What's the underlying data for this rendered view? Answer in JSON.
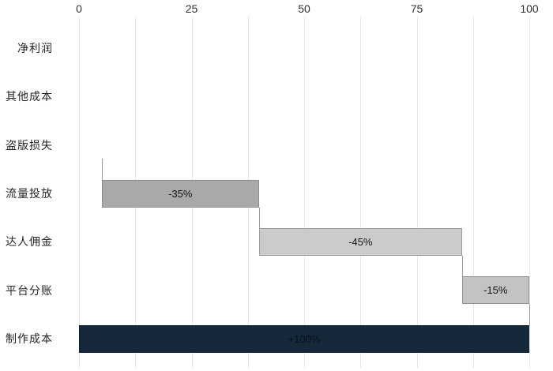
{
  "page": {
    "background": "#ffffff"
  },
  "chart_data": {
    "type": "bar",
    "subtype": "horizontal-waterfall",
    "title": "",
    "xlabel": "",
    "ylabel": "",
    "xlim": [
      0,
      100
    ],
    "grid": true,
    "grid_step": 12.5,
    "axis_position": "top",
    "x_ticks": [
      {
        "label": "0",
        "value": 0
      },
      {
        "label": "25",
        "value": 25
      },
      {
        "label": "50",
        "value": 50
      },
      {
        "label": "75",
        "value": 75
      },
      {
        "label": "100",
        "value": 100
      }
    ],
    "categories": [
      "净利润",
      "其他成本",
      "盗版损失",
      "流量投放",
      "达人佣金",
      "平台分账",
      "制作成本"
    ],
    "values": [
      null,
      null,
      null,
      -35,
      -45,
      -15,
      100
    ],
    "segments": [
      {
        "row": 3,
        "category": "流量投放",
        "start": 5,
        "end": 40,
        "label": "-35%",
        "fill": "#a9a9a9",
        "border": "#8d8d8d",
        "text": "#111111"
      },
      {
        "row": 4,
        "category": "达人佣金",
        "start": 40,
        "end": 85,
        "label": "-45%",
        "fill": "#cbcbcb",
        "border": "#9b9b9b",
        "text": "#111111"
      },
      {
        "row": 5,
        "category": "平台分账",
        "start": 85,
        "end": 100,
        "label": "-15%",
        "fill": "#c3c3c3",
        "border": "#8f8f8f",
        "text": "#111111"
      },
      {
        "row": 6,
        "category": "制作成本",
        "start": 0,
        "end": 100,
        "label": "+100%",
        "fill": "#16293a",
        "border": "#0f2030",
        "text": "#061019"
      }
    ],
    "connectors": [
      {
        "value": 5,
        "from_row": 2,
        "to_row": 3
      },
      {
        "value": 40,
        "from_row": 3,
        "to_row": 4
      },
      {
        "value": 85,
        "from_row": 4,
        "to_row": 5
      },
      {
        "value": 100,
        "from_row": 5,
        "to_row": 6
      }
    ],
    "colors": {
      "gridline": "#e7e7e7",
      "connector": "#9a9a9a",
      "tick_label": "#303030",
      "category_label": "#262626"
    },
    "legend": null
  }
}
